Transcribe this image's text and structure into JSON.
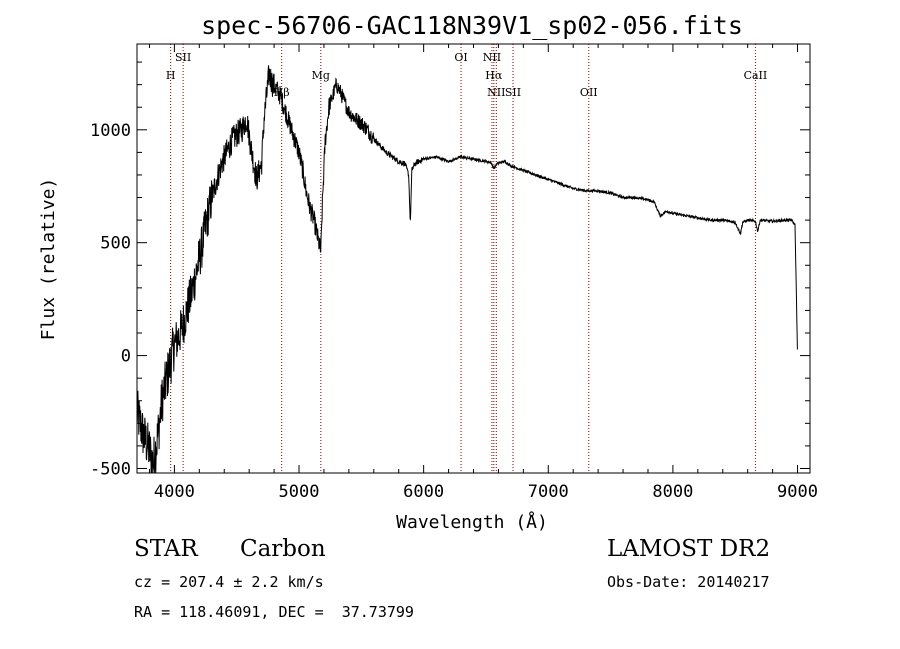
{
  "chart_data": {
    "type": "line",
    "title": "spec-56706-GAC118N39V1_sp02-056.fits",
    "xlabel": "Wavelength (Å)",
    "ylabel": "Flux (relative)",
    "xlim": [
      3700,
      9100
    ],
    "ylim": [
      -520,
      1380
    ],
    "xticks": [
      4000,
      5000,
      6000,
      7000,
      8000,
      9000
    ],
    "yticks": [
      -500,
      0,
      500,
      1000
    ],
    "grid": false,
    "line_color": "#000000",
    "marker_color": "#8b0000",
    "series": [
      {
        "x": [
          3700,
          3750,
          3800,
          3830,
          3860,
          3880,
          3900,
          3920,
          3940,
          3960,
          3980,
          4000,
          4030,
          4060,
          4100,
          4140,
          4180,
          4220,
          4260,
          4300,
          4340,
          4380,
          4420,
          4460,
          4500,
          4540,
          4580,
          4620,
          4660,
          4700,
          4720,
          4760,
          4790,
          4820,
          4850,
          4880,
          4910,
          4940,
          4970,
          5000,
          5030,
          5060,
          5090,
          5120,
          5150,
          5175,
          5190,
          5210,
          5240,
          5270,
          5300,
          5330,
          5360,
          5400,
          5450,
          5500,
          5550,
          5600,
          5650,
          5700,
          5750,
          5800,
          5850,
          5880,
          5893,
          5905,
          5930,
          5960,
          6000,
          6100,
          6150,
          6200,
          6250,
          6300,
          6400,
          6500,
          6540,
          6563,
          6590,
          6650,
          6700,
          6800,
          6900,
          7000,
          7100,
          7200,
          7300,
          7400,
          7500,
          7600,
          7700,
          7800,
          7850,
          7880,
          7900,
          7950,
          8000,
          8100,
          8200,
          8300,
          8400,
          8500,
          8542,
          8560,
          8600,
          8662,
          8680,
          8700,
          8800,
          8900,
          8950,
          8980,
          8990,
          9000
        ],
        "y": [
          -250,
          -350,
          -420,
          -480,
          -380,
          -300,
          -200,
          -150,
          -100,
          -50,
          0,
          50,
          80,
          120,
          200,
          280,
          380,
          480,
          600,
          700,
          780,
          850,
          900,
          950,
          980,
          1000,
          1050,
          900,
          780,
          850,
          1050,
          1250,
          1200,
          1180,
          1150,
          1100,
          1050,
          1000,
          950,
          900,
          820,
          720,
          650,
          600,
          520,
          460,
          700,
          950,
          1100,
          1150,
          1200,
          1170,
          1130,
          1080,
          1050,
          1030,
          1000,
          960,
          930,
          900,
          880,
          860,
          850,
          800,
          580,
          820,
          850,
          860,
          870,
          880,
          870,
          860,
          870,
          880,
          870,
          860,
          855,
          830,
          850,
          860,
          840,
          820,
          800,
          780,
          760,
          740,
          730,
          730,
          720,
          700,
          700,
          690,
          680,
          640,
          620,
          640,
          630,
          620,
          610,
          600,
          600,
          590,
          540,
          590,
          600,
          595,
          550,
          600,
          595,
          600,
          600,
          580,
          300,
          0
        ]
      }
    ],
    "line_markers": [
      {
        "label": "H",
        "x": 3970,
        "row": 1
      },
      {
        "label": "SII",
        "x": 4070,
        "row": 0
      },
      {
        "label": "Hβ",
        "x": 4861,
        "row": 2
      },
      {
        "label": "Mg",
        "x": 5175,
        "row": 1
      },
      {
        "label": "OI",
        "x": 6300,
        "row": 0
      },
      {
        "label": "NII",
        "x": 6548,
        "row": 0
      },
      {
        "label": "Hα",
        "x": 6563,
        "row": 1
      },
      {
        "label": "NII",
        "x": 6583,
        "row": 2
      },
      {
        "label": "SII",
        "x": 6717,
        "row": 2
      },
      {
        "label": "OII",
        "x": 7325,
        "row": 2
      },
      {
        "label": "CaII",
        "x": 8662,
        "row": 1
      }
    ]
  },
  "info": {
    "object_class": "STAR",
    "subclass": "Carbon",
    "survey": "LAMOST DR2",
    "redshift": "cz = 207.4 ± 2.2 km/s",
    "obs_date": "Obs-Date: 20140217",
    "coords": "RA = 118.46091, DEC =  37.73799"
  }
}
